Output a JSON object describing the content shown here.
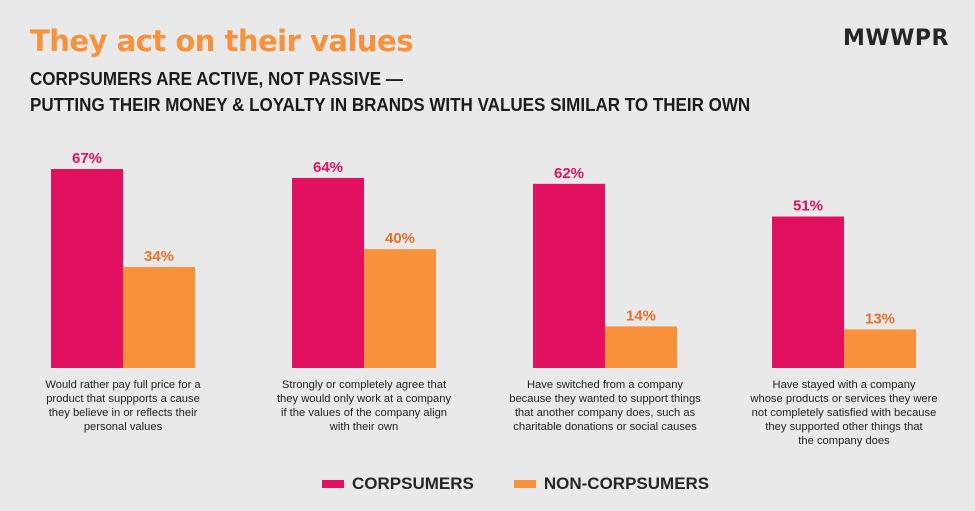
{
  "header": {
    "title": "They act on their values",
    "subtitle_line1": "CORPSUMERS ARE ACTIVE, NOT PASSIVE —",
    "subtitle_line2": "PUTTING THEIR MONEY & LOYALTY IN BRANDS WITH VALUES SIMILAR TO THEIR OWN",
    "brand": "MWWPR"
  },
  "colors": {
    "corpsumers": "#e1115f",
    "non_corpsumers": "#f7913b",
    "background": "#e9e9ea"
  },
  "chart_data": {
    "type": "bar",
    "categories": [
      "Would rather pay full price for a product that suppports a cause they believe in or reflects their personal values",
      "Strongly or completely agree that they would only work at a company if the values of the company align with their own",
      "Have switched from a company because they wanted to support things that another company does, such as charitable donations or social causes",
      "Have stayed with a company whose products or services they were not completely satisfied with because they  supported other things that the company does"
    ],
    "series": [
      {
        "name": "CORPSUMERS",
        "values": [
          67,
          64,
          62,
          51
        ],
        "labels": [
          "67%",
          "64%",
          "62%",
          "51%"
        ]
      },
      {
        "name": "NON-CORPSUMERS",
        "values": [
          34,
          40,
          14,
          13
        ],
        "labels": [
          "34%",
          "40%",
          "14%",
          "13%"
        ]
      }
    ],
    "ylim": [
      0,
      70
    ],
    "grid": false,
    "legend_position": "bottom-center"
  },
  "captions": [
    [
      "Would rather pay full price for a",
      "product that suppports a cause",
      "they believe in or reflects their",
      "personal values"
    ],
    [
      "Strongly or completely agree that",
      "they would only work at a company",
      "if the values of the company align",
      "with their own"
    ],
    [
      "Have switched from a company",
      "because they wanted to support things",
      "that another company does, such as",
      "charitable donations or social causes"
    ],
    [
      "Have stayed with a company",
      "whose products or services they were",
      "not completely satisfied with because",
      "they  supported other things that",
      "the company does"
    ]
  ],
  "legend": {
    "corpsumers": "CORPSUMERS",
    "non_corpsumers": "NON-CORPSUMERS"
  }
}
